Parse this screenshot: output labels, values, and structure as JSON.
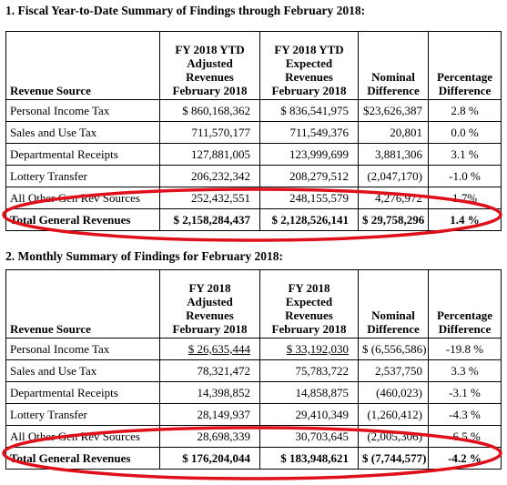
{
  "sections": [
    {
      "heading": "1.  Fiscal Year-to-Date Summary of Findings through February 2018:",
      "table": {
        "header": [
          [
            "Revenue Source"
          ],
          [
            "FY 2018 YTD",
            "Adjusted",
            "Revenues",
            "February 2018"
          ],
          [
            "FY 2018 YTD",
            "Expected",
            "Revenues",
            "February 2018"
          ],
          [
            "Nominal",
            "Difference"
          ],
          [
            "Percentage",
            "Difference"
          ]
        ],
        "rows": [
          [
            "Personal Income Tax",
            "$ 860,168,362",
            "$ 836,541,975",
            "$23,626,387",
            "2.8 %"
          ],
          [
            "Sales and Use Tax",
            "711,570,177",
            "711,549,376",
            "20,801",
            "0.0 %"
          ],
          [
            "Departmental Receipts",
            "127,881,005",
            "123,999,699",
            "3,881,306",
            "3.1 %"
          ],
          [
            "Lottery Transfer",
            "206,232,342",
            "208,279,512",
            "(2,047,170)",
            "-1.0 %"
          ],
          [
            "All Other Gen Rev Sources",
            "252,432,551",
            "248,155,579",
            "4,276,972",
            "1.7%"
          ]
        ],
        "total": [
          "Total General Revenues",
          "$ 2,158,284,437",
          "$ 2,128,526,141",
          "$ 29,758,296",
          "1.4 %"
        ]
      }
    },
    {
      "heading": "2.  Monthly Summary of Findings for February 2018:",
      "table": {
        "header": [
          [
            "Revenue Source"
          ],
          [
            "FY 2018",
            "Adjusted",
            "Revenues",
            "February 2018"
          ],
          [
            "FY 2018",
            "Expected",
            "Revenues",
            "February 2018"
          ],
          [
            "Nominal",
            "Difference"
          ],
          [
            "Percentage",
            "Difference"
          ]
        ],
        "rows": [
          [
            "Personal Income Tax",
            "$ 26,635,444",
            "$ 33,192,030",
            "$ (6,556,586)",
            "-19.8 %"
          ],
          [
            "Sales and Use Tax",
            "78,321,472",
            "75,783,722",
            "2,537,750",
            "3.3 %"
          ],
          [
            "Departmental Receipts",
            "14,398,852",
            "14,858,875",
            "(460,023)",
            "-3.1 %"
          ],
          [
            "Lottery Transfer",
            "28,149,937",
            "29,410,349",
            "(1,260,412)",
            "-4.3 %"
          ],
          [
            "All Other Gen Rev Sources",
            "28,698,339",
            "30,703,645",
            "(2,005,306)",
            "-6.5 %"
          ]
        ],
        "total": [
          "Total General Revenues",
          "$ 176,204,044",
          "$ 183,948,621",
          "$ (7,744,577)",
          "-4.2 %"
        ]
      }
    }
  ]
}
